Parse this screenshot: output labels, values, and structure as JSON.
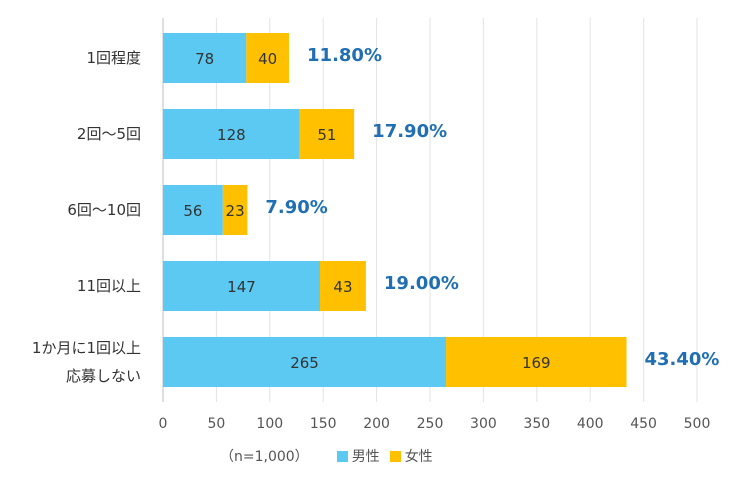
{
  "chart_data": {
    "type": "bar",
    "orientation": "horizontal",
    "stacked": true,
    "title": "",
    "xlabel": "",
    "ylabel": "",
    "xlim": [
      0,
      500
    ],
    "xticks": [
      0,
      50,
      100,
      150,
      200,
      250,
      300,
      350,
      400,
      450,
      500
    ],
    "grid": true,
    "categories": [
      [
        "1回程度"
      ],
      [
        "2回〜5回"
      ],
      [
        "6回〜10回"
      ],
      [
        "11回以上"
      ],
      [
        "1か月に1回以上",
        "応募しない"
      ]
    ],
    "series": [
      {
        "name": "男性",
        "color": "#5bc9f2",
        "values": [
          78,
          128,
          56,
          147,
          265
        ]
      },
      {
        "name": "女性",
        "color": "#ffc000",
        "values": [
          40,
          51,
          23,
          43,
          169
        ]
      }
    ],
    "percentages": [
      "11.80%",
      "17.90%",
      "7.90%",
      "19.00%",
      "43.40%"
    ],
    "percent_color": "#1f6fb2",
    "legend_position": "bottom",
    "note": "（n=1,000）"
  }
}
